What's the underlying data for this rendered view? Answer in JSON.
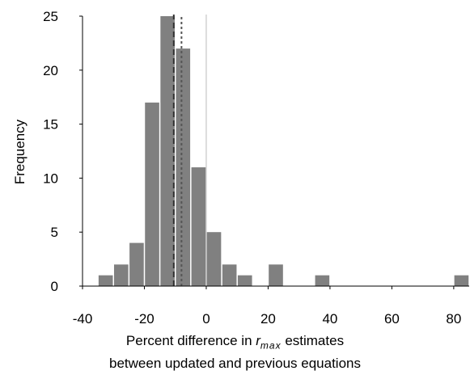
{
  "chart_data": {
    "type": "bar",
    "subtype": "histogram",
    "bin_width": 5,
    "bins": [
      {
        "start": -35,
        "end": -30,
        "count": 1
      },
      {
        "start": -30,
        "end": -25,
        "count": 2
      },
      {
        "start": -25,
        "end": -20,
        "count": 4
      },
      {
        "start": -20,
        "end": -15,
        "count": 17
      },
      {
        "start": -15,
        "end": -10,
        "count": 25
      },
      {
        "start": -10,
        "end": -5,
        "count": 22
      },
      {
        "start": -5,
        "end": 0,
        "count": 11
      },
      {
        "start": 0,
        "end": 5,
        "count": 5
      },
      {
        "start": 5,
        "end": 10,
        "count": 2
      },
      {
        "start": 10,
        "end": 15,
        "count": 1
      },
      {
        "start": 20,
        "end": 25,
        "count": 2
      },
      {
        "start": 35,
        "end": 40,
        "count": 1
      },
      {
        "start": 80,
        "end": 85,
        "count": 1
      }
    ],
    "xlim": [
      -40,
      85
    ],
    "ylim": [
      0,
      25
    ],
    "xticks": [
      "-40",
      "-20",
      "0",
      "20",
      "40",
      "60",
      "80"
    ],
    "xtick_values": [
      -40,
      -20,
      0,
      20,
      40,
      60,
      80
    ],
    "yticks": [
      "0",
      "5",
      "10",
      "15",
      "20",
      "25"
    ],
    "ytick_values": [
      0,
      5,
      10,
      15,
      20,
      25
    ],
    "ylabel": "Frequency",
    "xlabel_line1_prefix": "Percent difference in ",
    "xlabel_symbol": "r",
    "xlabel_subscript": "max",
    "xlabel_line1_suffix": " estimates",
    "xlabel_line2": "between updated and previous equations",
    "reference_lines": [
      {
        "x": 0,
        "style": "solid",
        "color": "#bbbbbb"
      },
      {
        "x": -10.5,
        "style": "dashed",
        "color": "#333333"
      },
      {
        "x": -8,
        "style": "dotted",
        "color": "#555555"
      }
    ],
    "bar_color": "#808080",
    "grid": false,
    "legend": "none"
  }
}
